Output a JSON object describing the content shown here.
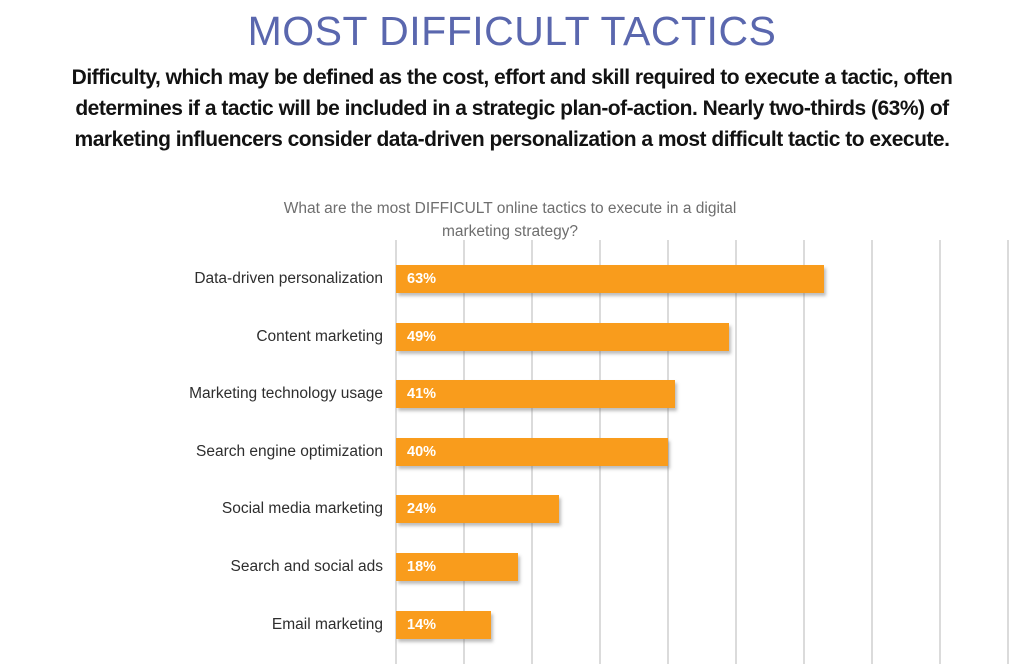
{
  "header": {
    "title": "MOST DIFFICULT TACTICS",
    "intro_lines": [
      "Difficulty, which may be defined as the cost, effort and skill required to execute a tactic, often",
      "determines if a tactic will be included in a strategic plan-of-action. Nearly two-thirds (63%) of",
      "marketing influencers consider data-driven personalization a most difficult tactic to execute."
    ]
  },
  "chart_data": {
    "type": "bar",
    "orientation": "horizontal",
    "title_lines": [
      "What are the most DIFFICULT online tactics to execute in a digital",
      "marketing strategy?"
    ],
    "categories": [
      "Data-driven personalization",
      "Content marketing",
      "Marketing technology usage",
      "Search engine optimization",
      "Social media marketing",
      "Search and social ads",
      "Email marketing"
    ],
    "values": [
      63,
      49,
      41,
      40,
      24,
      18,
      14
    ],
    "value_labels": [
      "63%",
      "49%",
      "41%",
      "40%",
      "24%",
      "18%",
      "14%"
    ],
    "unit": "%",
    "xlim": [
      0,
      90
    ],
    "gridline_step": 10,
    "grid": true,
    "legend": false,
    "bar_color": "#F99C1C",
    "value_label_color": "#FFFFFF"
  },
  "colors": {
    "title": "#5A67AE",
    "body_text": "#121212",
    "chart_title": "#6E6E6E",
    "gridline": "#DBDBDB",
    "category_label": "#2E2E2E"
  }
}
